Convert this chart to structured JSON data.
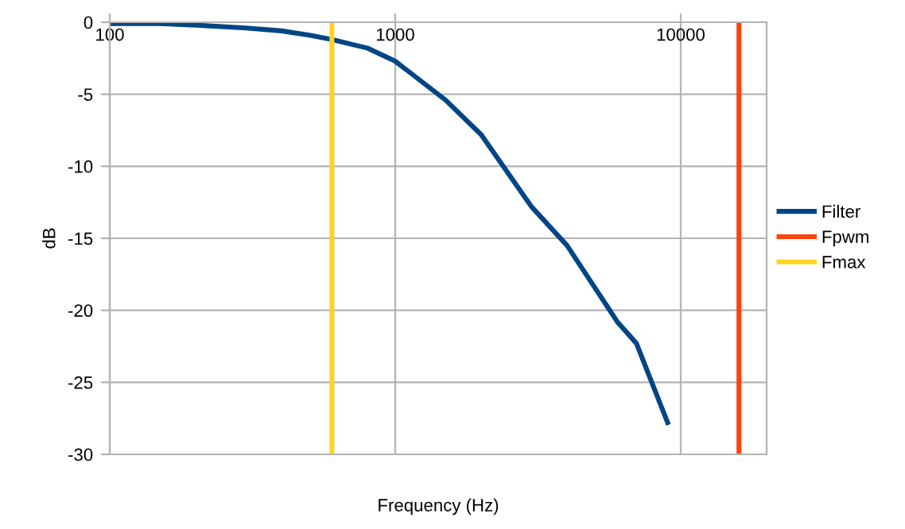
{
  "chart_data": {
    "type": "line",
    "xlabel": "Frequency (Hz)",
    "ylabel": "dB",
    "log": "x",
    "xlim": [
      100,
      20000
    ],
    "xticks": [
      100,
      1000,
      10000
    ],
    "ylim": [
      -30,
      0
    ],
    "yticks": [
      -30,
      -25,
      -20,
      -15,
      -10,
      -5,
      0
    ],
    "grid": true,
    "legend": "right",
    "marker": "none",
    "line_style": "solid",
    "series": [
      {
        "name": "Filter",
        "color": "#004586",
        "x": [
          100,
          150,
          200,
          300,
          400,
          500,
          600,
          800,
          1000,
          1500,
          2000,
          3000,
          4000,
          6000,
          7000,
          9000
        ],
        "values": [
          -0.1,
          -0.1,
          -0.2,
          -0.4,
          -0.6,
          -0.9,
          -1.2,
          -1.8,
          -2.7,
          -5.4,
          -7.8,
          -12.8,
          -15.5,
          -20.8,
          -22.3,
          -27.8
        ]
      },
      {
        "name": "Fpwm",
        "color": "#ff420e",
        "x": [
          16000,
          16000
        ],
        "values": [
          0,
          -30
        ]
      },
      {
        "name": "Fmax",
        "color": "#ffd320",
        "x": [
          600,
          600
        ],
        "values": [
          0,
          -30
        ]
      }
    ]
  }
}
